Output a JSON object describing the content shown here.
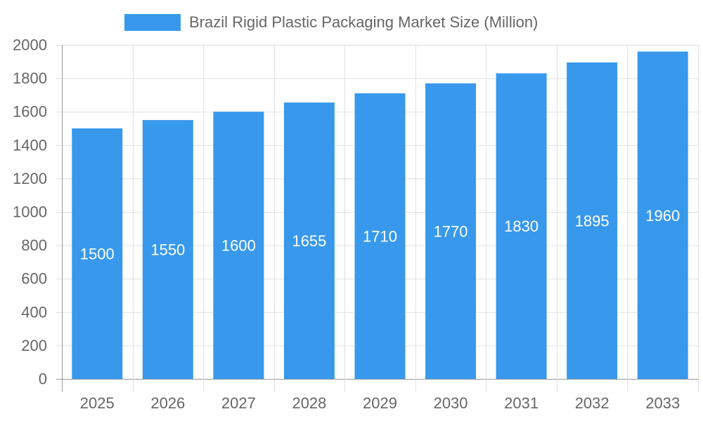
{
  "chart_data": {
    "type": "bar",
    "categories": [
      "2025",
      "2026",
      "2027",
      "2028",
      "2029",
      "2030",
      "2031",
      "2032",
      "2033"
    ],
    "series": [
      {
        "name": "Brazil Rigid Plastic Packaging Market Size (Million)",
        "values": [
          1500,
          1550,
          1600,
          1655,
          1710,
          1770,
          1830,
          1895,
          1960
        ]
      }
    ],
    "xlabel": "",
    "ylabel": "",
    "ylim": [
      0,
      2000
    ],
    "yticks": [
      0,
      200,
      400,
      600,
      800,
      1000,
      1200,
      1400,
      1600,
      1800,
      2000
    ],
    "grid": true,
    "legend": "top",
    "data_labels": true,
    "colors": {
      "bar": "#3899ec",
      "grid": "#e0e0e0",
      "axis": "#999999",
      "text": "#666666",
      "label": "#ffffff"
    }
  }
}
